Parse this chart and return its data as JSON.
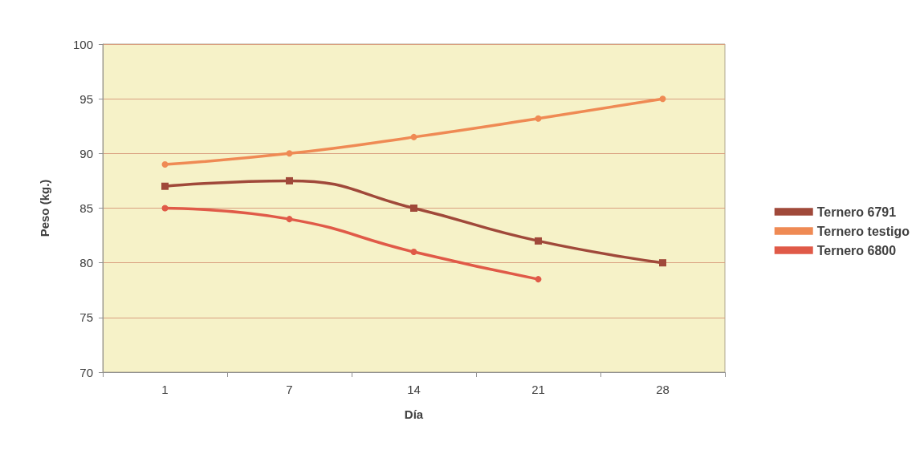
{
  "chart_data": {
    "type": "line",
    "xlabel": "Día",
    "ylabel": "Peso (kg.)",
    "categories": [
      "1",
      "7",
      "14",
      "21",
      "28"
    ],
    "series": [
      {
        "name": "Ternero 6791",
        "color": "#a0493a",
        "marker": "square",
        "values": [
          87,
          87.5,
          85,
          82,
          80
        ]
      },
      {
        "name": "Ternero testigo",
        "color": "#ef8a54",
        "marker": "circle",
        "values": [
          89,
          90,
          91.5,
          93.2,
          95
        ]
      },
      {
        "name": "Ternero 6800",
        "color": "#e05a48",
        "marker": "circle",
        "values": [
          85,
          84,
          81,
          78.5,
          null
        ]
      }
    ],
    "ylim": [
      70,
      100
    ],
    "yticks": [
      70,
      75,
      80,
      85,
      90,
      95,
      100
    ],
    "grid": "y",
    "legend": "right"
  }
}
